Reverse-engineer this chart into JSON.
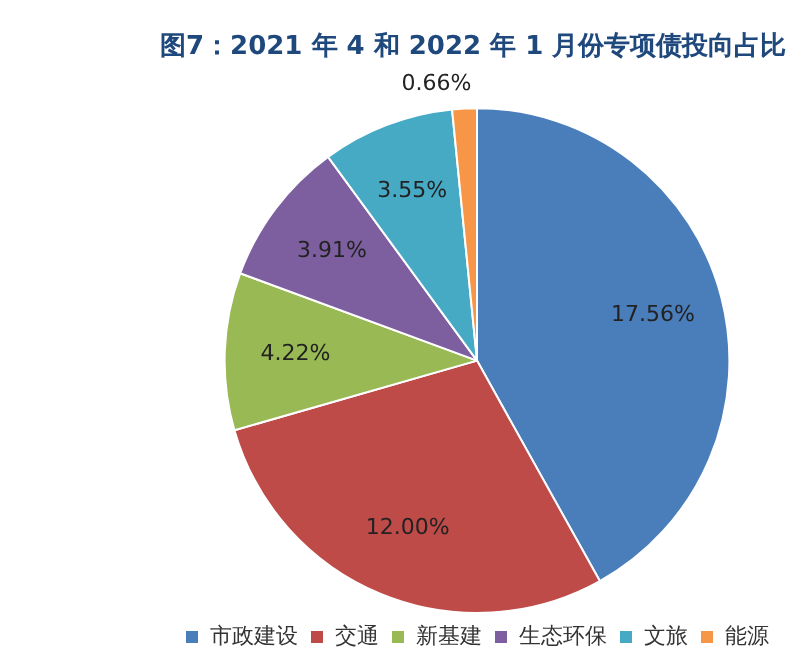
{
  "chart_data": {
    "type": "pie",
    "title": "图7：2021 年 4 和 2022 年 1 月份专项债投向占比",
    "categories": [
      "市政建设",
      "交通",
      "新基建",
      "生态环保",
      "文旅",
      "能源"
    ],
    "values": [
      17.56,
      12.0,
      4.22,
      3.91,
      3.55,
      0.66
    ],
    "value_labels": [
      "17.56%",
      "12.00%",
      "4.22%",
      "3.91%",
      "3.55%",
      "0.66%"
    ],
    "colors": [
      "#4a7ebb",
      "#be4b48",
      "#98b954",
      "#7d5fa0",
      "#46aac5",
      "#f79646"
    ],
    "legend": "bottom"
  }
}
